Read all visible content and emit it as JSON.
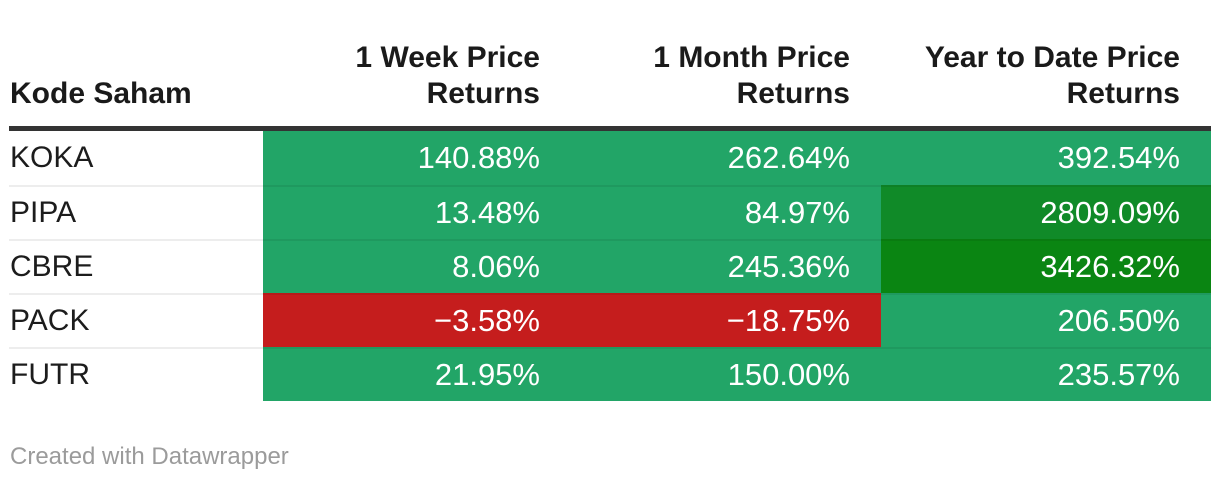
{
  "colors": {
    "positive_green": "#22a567",
    "high_green": "#108a28",
    "highest_green": "#0a8512",
    "negative_red": "#c51d1d",
    "header_border": "#333333",
    "label_text": "#1c1c1c",
    "value_text": "#ffffff",
    "footer_text": "#9b9b9b"
  },
  "header": {
    "col0": "Kode Saham",
    "col1": "1 Week Price Returns",
    "col2": "1 Month Price Returns",
    "col3": "Year to Date Price Returns"
  },
  "rows": [
    {
      "code": "KOKA",
      "c1": {
        "text": "140.88%",
        "bg": "#22a567"
      },
      "c2": {
        "text": "262.64%",
        "bg": "#22a567"
      },
      "c3": {
        "text": "392.54%",
        "bg": "#22a567"
      }
    },
    {
      "code": "PIPA",
      "c1": {
        "text": "13.48%",
        "bg": "#22a567"
      },
      "c2": {
        "text": "84.97%",
        "bg": "#22a567"
      },
      "c3": {
        "text": "2809.09%",
        "bg": "#108a28"
      }
    },
    {
      "code": "CBRE",
      "c1": {
        "text": "8.06%",
        "bg": "#22a567"
      },
      "c2": {
        "text": "245.36%",
        "bg": "#22a567"
      },
      "c3": {
        "text": "3426.32%",
        "bg": "#0a8512"
      }
    },
    {
      "code": "PACK",
      "c1": {
        "text": "−3.58%",
        "bg": "#c51d1d"
      },
      "c2": {
        "text": "−18.75%",
        "bg": "#c51d1d"
      },
      "c3": {
        "text": "206.50%",
        "bg": "#22a567"
      }
    },
    {
      "code": "FUTR",
      "c1": {
        "text": "21.95%",
        "bg": "#22a567"
      },
      "c2": {
        "text": "150.00%",
        "bg": "#22a567"
      },
      "c3": {
        "text": "235.57%",
        "bg": "#22a567"
      }
    }
  ],
  "footer": {
    "attribution": "Created with Datawrapper"
  },
  "chart_data": {
    "type": "table",
    "title": "",
    "row_label_column": "Kode Saham",
    "categories": [
      "KOKA",
      "PIPA",
      "CBRE",
      "PACK",
      "FUTR"
    ],
    "series": [
      {
        "name": "1 Week Price Returns",
        "values": [
          140.88,
          13.48,
          8.06,
          -3.58,
          21.95
        ]
      },
      {
        "name": "1 Month Price Returns",
        "values": [
          262.64,
          84.97,
          245.36,
          -18.75,
          150.0
        ]
      },
      {
        "name": "Year to Date Price Returns",
        "values": [
          392.54,
          2809.09,
          3426.32,
          206.5,
          235.57
        ]
      }
    ],
    "value_unit": "%",
    "layout_hints": {
      "value_alignment": "right",
      "heatmap_rule": "negative values red, positive values green, very large values (>1000%) darker green",
      "legend": "none",
      "grid": "horizontal row separators only"
    }
  }
}
